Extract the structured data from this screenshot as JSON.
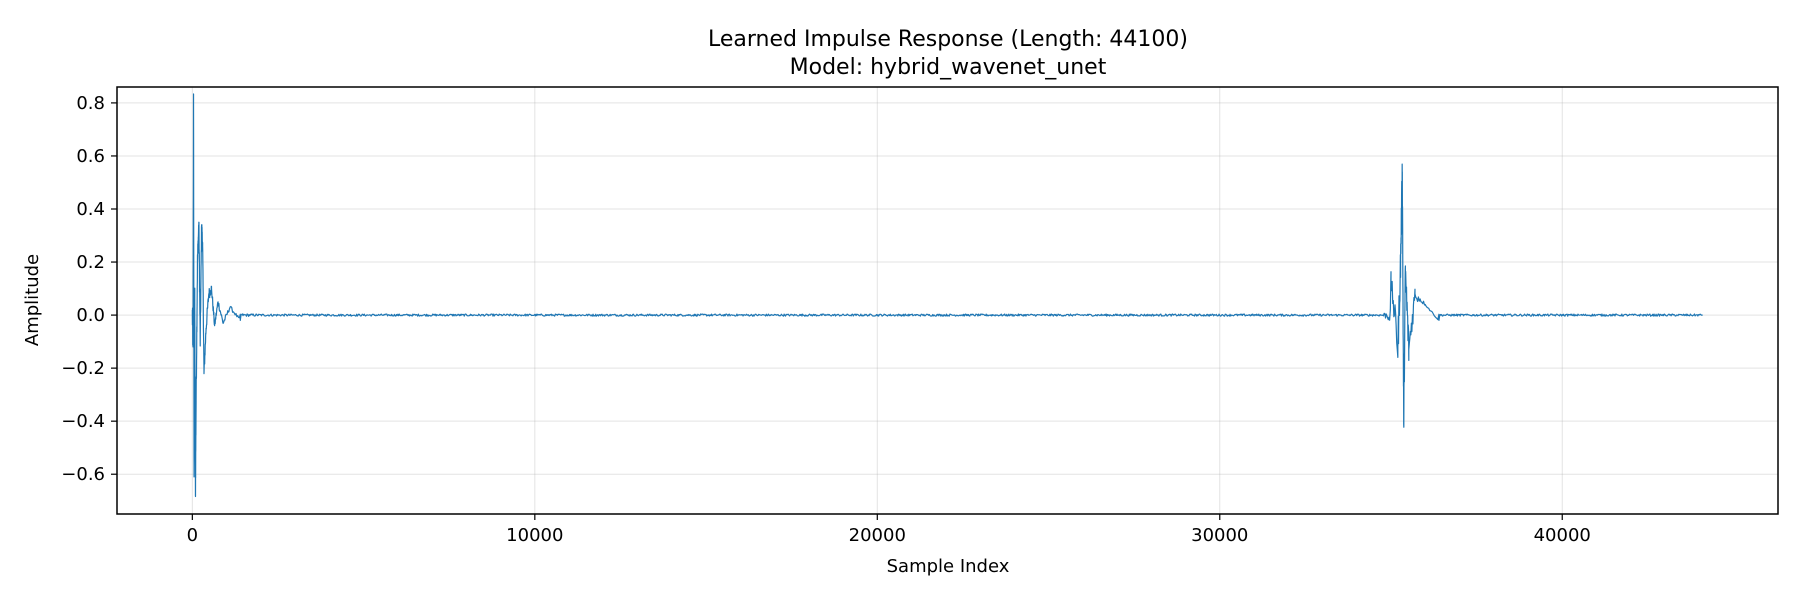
{
  "chart_data": {
    "type": "line",
    "title_line1": "Learned Impulse Response (Length: 44100)",
    "title_line2": "Model: hybrid_wavenet_unet",
    "xlabel": "Sample Index",
    "ylabel": "Amplitude",
    "xlim": [
      -2200,
      46300
    ],
    "ylim": [
      -0.75,
      0.86
    ],
    "xticks": [
      0,
      10000,
      20000,
      30000,
      40000
    ],
    "xtick_labels": [
      "0",
      "10000",
      "20000",
      "30000",
      "40000"
    ],
    "yticks": [
      -0.6,
      -0.4,
      -0.2,
      0.0,
      0.2,
      0.4,
      0.6,
      0.8
    ],
    "ytick_labels": [
      "−0.6",
      "−0.4",
      "−0.2",
      "0.0",
      "0.2",
      "0.4",
      "0.6",
      "0.8"
    ],
    "grid": true,
    "length": 44100,
    "series": [
      {
        "color": "#1f77b4",
        "features": [
          {
            "x": 0,
            "y": 0.0
          },
          {
            "x": 20,
            "y": -0.12
          },
          {
            "x": 35,
            "y": 0.79
          },
          {
            "x": 50,
            "y": -0.61
          },
          {
            "x": 70,
            "y": 0.05
          },
          {
            "x": 90,
            "y": -0.68
          },
          {
            "x": 110,
            "y": -0.32
          },
          {
            "x": 150,
            "y": 0.2
          },
          {
            "x": 190,
            "y": 0.35
          },
          {
            "x": 230,
            "y": -0.1
          },
          {
            "x": 270,
            "y": 0.34
          },
          {
            "x": 300,
            "y": 0.26
          },
          {
            "x": 340,
            "y": -0.22
          },
          {
            "x": 400,
            "y": -0.05
          },
          {
            "x": 480,
            "y": 0.08
          },
          {
            "x": 560,
            "y": 0.1
          },
          {
            "x": 650,
            "y": -0.04
          },
          {
            "x": 750,
            "y": 0.05
          },
          {
            "x": 900,
            "y": -0.03
          },
          {
            "x": 1100,
            "y": 0.03
          },
          {
            "x": 1400,
            "y": -0.02
          },
          {
            "x": 35000,
            "y": 0.13
          },
          {
            "x": 35200,
            "y": -0.12
          },
          {
            "x": 35280,
            "y": 0.2
          },
          {
            "x": 35330,
            "y": 0.54
          },
          {
            "x": 35370,
            "y": -0.41
          },
          {
            "x": 35420,
            "y": 0.16
          },
          {
            "x": 35520,
            "y": -0.13
          },
          {
            "x": 35700,
            "y": 0.08
          },
          {
            "x": 36000,
            "y": 0.04
          },
          {
            "x": 36400,
            "y": -0.02
          },
          {
            "x": 44100,
            "y": 0.0
          }
        ]
      }
    ]
  }
}
